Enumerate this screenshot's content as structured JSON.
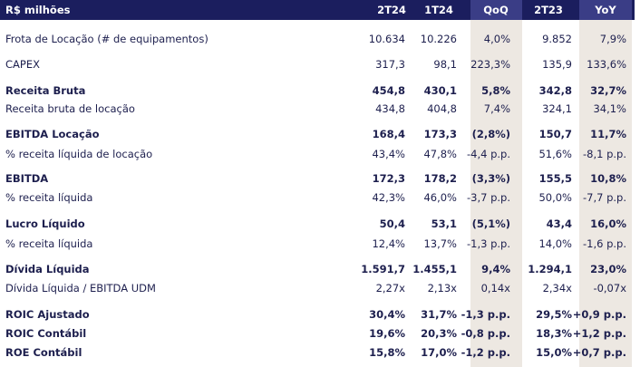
{
  "table": {
    "header": [
      "R$ milhões",
      "2T24",
      "1T24",
      "QoQ",
      "2T23",
      "YoY"
    ],
    "rows": [
      {
        "bold": false,
        "cells": [
          "Frota de Locação (# de equipamentos)",
          "10.634",
          "10.226",
          "4,0%",
          "9.852",
          "7,9%"
        ]
      },
      {
        "bold": false,
        "cells": [
          "CAPEX",
          "317,3",
          "98,1",
          "223,3%",
          "135,9",
          "133,6%"
        ]
      },
      {
        "bold": true,
        "cells": [
          "Receita Bruta",
          "454,8",
          "430,1",
          "5,8%",
          "342,8",
          "32,7%"
        ]
      },
      {
        "bold": false,
        "cells": [
          "Receita bruta de locação",
          "434,8",
          "404,8",
          "7,4%",
          "324,1",
          "34,1%"
        ]
      },
      {
        "bold": true,
        "cells": [
          "EBITDA Locação",
          "168,4",
          "173,3",
          "(2,8%)",
          "150,7",
          "11,7%"
        ]
      },
      {
        "bold": false,
        "cells": [
          "% receita líquida de locação",
          "43,4%",
          "47,8%",
          "-4,4 p.p.",
          "51,6%",
          "-8,1 p.p."
        ]
      },
      {
        "bold": true,
        "cells": [
          "EBITDA",
          "172,3",
          "178,2",
          "(3,3%)",
          "155,5",
          "10,8%"
        ]
      },
      {
        "bold": false,
        "cells": [
          "% receita líquida",
          "42,3%",
          "46,0%",
          "-3,7 p.p.",
          "50,0%",
          "-7,7 p.p."
        ]
      },
      {
        "bold": true,
        "cells": [
          "Lucro Líquido",
          "50,4",
          "53,1",
          "(5,1%)",
          "43,4",
          "16,0%"
        ]
      },
      {
        "bold": false,
        "cells": [
          "% receita líquida",
          "12,4%",
          "13,7%",
          "-1,3 p.p.",
          "14,0%",
          "-1,6 p.p."
        ]
      },
      {
        "bold": true,
        "cells": [
          "Dívida Líquida",
          "1.591,7",
          "1.455,1",
          "9,4%",
          "1.294,1",
          "23,0%"
        ]
      },
      {
        "bold": false,
        "cells": [
          "Dívida Líquida / EBITDA UDM",
          "2,27x",
          "2,13x",
          "0,14x",
          "2,34x",
          "-0,07x"
        ]
      },
      {
        "bold": true,
        "cells": [
          "ROIC Ajustado",
          "30,4%",
          "31,7%",
          "-1,3 p.p.",
          "29,5%",
          "+0,9 p.p."
        ]
      },
      {
        "bold": true,
        "cells": [
          "ROIC Contábil",
          "19,6%",
          "20,3%",
          "-0,8 p.p.",
          "18,3%",
          "+1,2 p.p."
        ]
      },
      {
        "bold": true,
        "cells": [
          "ROE Contábil",
          "15,8%",
          "17,0%",
          "-1,2 p.p.",
          "15,0%",
          "+0,7 p.p."
        ]
      }
    ]
  }
}
